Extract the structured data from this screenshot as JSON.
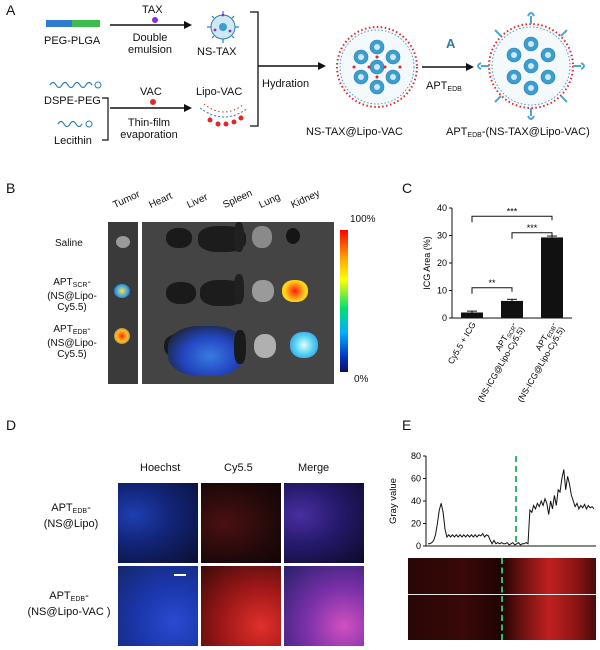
{
  "panels": {
    "a": "A",
    "b": "B",
    "c": "C",
    "d": "D",
    "e": "E"
  },
  "scheme": {
    "peg_plga": "PEG-PLGA",
    "tax": "TAX",
    "double_emulsion": "Double emulsion",
    "ns_tax": "NS-TAX",
    "dspe_peg": "DSPE-PEG",
    "vac": "VAC",
    "lipo_vac": "Lipo-VAC",
    "thin_film": "Thin-film evaporation",
    "lecithin": "Lecithin",
    "hydration": "Hydration",
    "apt_prefix": "APT",
    "apt_sub": "EDB",
    "ns_tax_lipo_vac": "NS-TAX@Lipo-VAC",
    "final_suffix": "-(NS-TAX@Lipo-VAC)",
    "a_icon": "A"
  },
  "imaging": {
    "columns": [
      "Tumor",
      "Heart",
      "Liver",
      "Spleen",
      "Lung",
      "Kidney"
    ],
    "rows": [
      {
        "line1": "Saline",
        "line2": ""
      },
      {
        "line1": "APT",
        "sub": "SCR",
        "suffix": "-",
        "line2": "(NS@Lipo-Cy5.5)"
      },
      {
        "line1": "APT",
        "sub": "EDB",
        "suffix": "-",
        "line2": "(NS@Lipo-Cy5.5)"
      }
    ],
    "scale_max": "100%",
    "scale_min": "0%"
  },
  "chart_data": [
    {
      "type": "bar",
      "categories": [
        "Cy5.5 + ICG",
        "APT-SCR-(NS-ICG@Lipo-Cy5.5)",
        "APT-EDB-(NS-ICG@Lipo-Cy5.5)"
      ],
      "category_labels": [
        {
          "line1": "Cy5.5 + ICG"
        },
        {
          "line1": "APT",
          "sub": "SCR",
          "suffix": "-",
          "line2": "(NS-ICG@Lipo-Cy5.5)"
        },
        {
          "line1": "APT",
          "sub": "EDB",
          "suffix": "-",
          "line2": "(NS-ICG@Lipo-Cy5.5)"
        }
      ],
      "values": [
        2,
        6.2,
        29.3
      ],
      "errors": [
        0.5,
        0.6,
        0.5
      ],
      "ylabel": "ICG Area (%)",
      "ylim": [
        0,
        40
      ],
      "yticks": [
        "0",
        "10",
        "20",
        "30",
        "40"
      ],
      "significance": [
        {
          "from": 0,
          "to": 1,
          "label": "**"
        },
        {
          "from": 1,
          "to": 2,
          "label": "***"
        },
        {
          "from": 0,
          "to": 2,
          "label": "***"
        }
      ],
      "bar_color": "#111111"
    },
    {
      "type": "line",
      "ylabel": "Gray value",
      "ylim": [
        0,
        80
      ],
      "yticks": [
        "0",
        "20",
        "40",
        "60",
        "80"
      ],
      "values": [
        2,
        2,
        3,
        5,
        10,
        20,
        32,
        38,
        30,
        15,
        8,
        10,
        8,
        10,
        8,
        10,
        8,
        10,
        8,
        10,
        8,
        10,
        8,
        10,
        8,
        10,
        8,
        10,
        9,
        11,
        8,
        10,
        9,
        5,
        2,
        5,
        2,
        3,
        2,
        3,
        2,
        2,
        3,
        1,
        2,
        3,
        1,
        2,
        3,
        1,
        2,
        2,
        3,
        2,
        32,
        30,
        36,
        33,
        38,
        35,
        40,
        36,
        42,
        38,
        28,
        40,
        33,
        45,
        36,
        50,
        48,
        60,
        68,
        50,
        62,
        55,
        45,
        40,
        35,
        38,
        33,
        36,
        34,
        37,
        33,
        36,
        34,
        35,
        33
      ],
      "divider_color": "#2eb872"
    }
  ],
  "fluor": {
    "columns": [
      "Hoechst",
      "Cy5.5",
      "Merge"
    ],
    "rows": [
      {
        "line1": "APT",
        "sub": "EDB",
        "suffix": "-",
        "line2": "(NS@Lipo)"
      },
      {
        "line1": "APT",
        "sub": "EDB",
        "suffix": "-",
        "line2": "(NS@Lipo-VAC )"
      }
    ]
  }
}
